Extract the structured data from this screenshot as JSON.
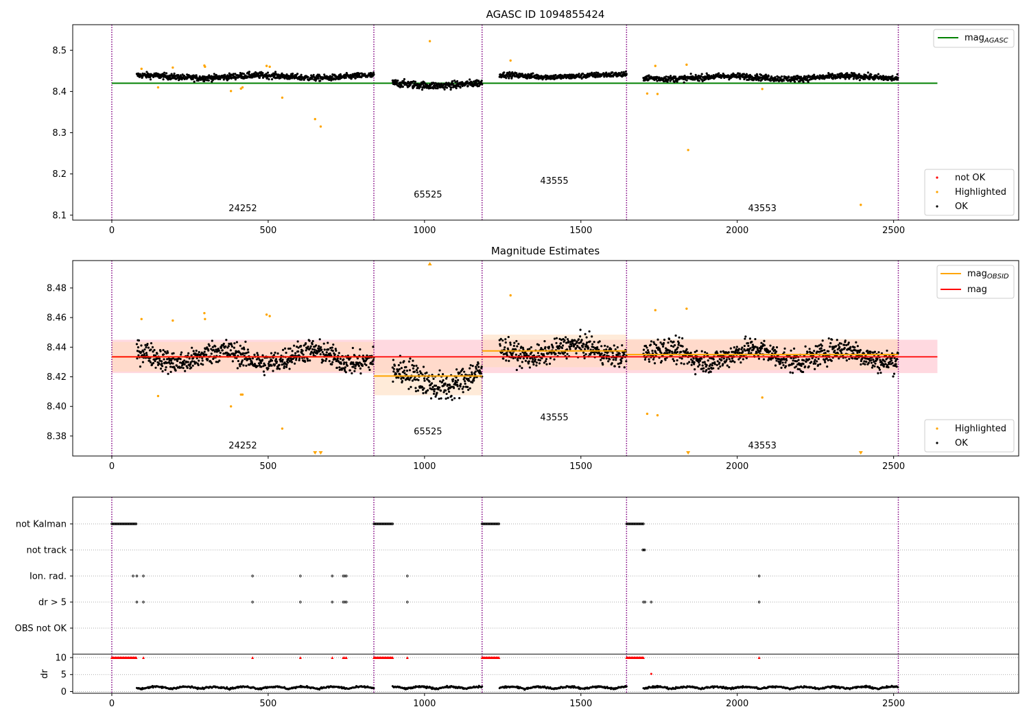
{
  "colors": {
    "ok": "#000000",
    "highlighted": "#ffa500",
    "not_ok": "#ff0000",
    "mag_agasc": "#008000",
    "mag_obsid": "#ffa500",
    "mag": "#ff0000",
    "obsid_boundary": "#800080",
    "band_mag": "#ffc0cb",
    "band_obsid": "#ffdab9"
  },
  "chart_data": [
    {
      "type": "scatter",
      "title": "AGASC ID 1094855424",
      "xlim": [
        -125,
        2900
      ],
      "ylim": [
        8.088,
        8.562
      ],
      "x_ticks": [
        0,
        500,
        1000,
        1500,
        2000,
        2500
      ],
      "y_ticks": [
        8.1,
        8.2,
        8.3,
        8.4,
        8.5
      ],
      "y_tick_labels": [
        "8.1",
        "8.2",
        "8.3",
        "8.4",
        "8.5"
      ],
      "grid": false,
      "lines": [
        {
          "name": "mag_AGASC",
          "value": 8.42,
          "x_range": [
            0,
            2640
          ],
          "color": "#008000"
        }
      ],
      "legend_top": {
        "position": "top-right",
        "entries": [
          {
            "label": "mag",
            "subscript": "AGASC",
            "color": "#008000",
            "kind": "line"
          }
        ]
      },
      "legend_bottom": {
        "position": "bottom-right",
        "entries": [
          {
            "label": "not OK",
            "color": "#ff0000",
            "kind": "point"
          },
          {
            "label": "Highlighted",
            "color": "#ffa500",
            "kind": "point"
          },
          {
            "label": "OK",
            "color": "#000000",
            "kind": "point"
          }
        ]
      },
      "obsid_boundaries": [
        0,
        838,
        1184,
        1646,
        2515
      ],
      "obsid_labels": [
        {
          "text": "24252",
          "x": 419,
          "y": 8.11
        },
        {
          "text": "65525",
          "x": 1011,
          "y": 8.143
        },
        {
          "text": "43555",
          "x": 1415,
          "y": 8.176
        },
        {
          "text": "43553",
          "x": 2080,
          "y": 8.11
        }
      ],
      "segments": [
        {
          "x_range": [
            80,
            838
          ],
          "mean": 8.436,
          "spread": 0.008
        },
        {
          "x_range": [
            898,
            1184
          ],
          "mean": 8.418,
          "spread": 0.01
        },
        {
          "x_range": [
            1240,
            1646
          ],
          "mean": 8.438,
          "spread": 0.007
        },
        {
          "x_range": [
            1700,
            2515
          ],
          "mean": 8.434,
          "spread": 0.008
        }
      ],
      "highlighted_points": [
        {
          "x": 95,
          "y": 8.455
        },
        {
          "x": 148,
          "y": 8.41
        },
        {
          "x": 195,
          "y": 8.458
        },
        {
          "x": 296,
          "y": 8.463
        },
        {
          "x": 298,
          "y": 8.46
        },
        {
          "x": 381,
          "y": 8.401
        },
        {
          "x": 413,
          "y": 8.407
        },
        {
          "x": 418,
          "y": 8.41
        },
        {
          "x": 495,
          "y": 8.462
        },
        {
          "x": 505,
          "y": 8.46
        },
        {
          "x": 545,
          "y": 8.385
        },
        {
          "x": 650,
          "y": 8.333
        },
        {
          "x": 668,
          "y": 8.315
        },
        {
          "x": 1017,
          "y": 8.522
        },
        {
          "x": 1275,
          "y": 8.475
        },
        {
          "x": 1712,
          "y": 8.395
        },
        {
          "x": 1738,
          "y": 8.462
        },
        {
          "x": 1745,
          "y": 8.394
        },
        {
          "x": 1838,
          "y": 8.465
        },
        {
          "x": 1843,
          "y": 8.258
        },
        {
          "x": 2080,
          "y": 8.406
        },
        {
          "x": 2395,
          "y": 8.125
        }
      ]
    },
    {
      "type": "scatter",
      "title": "Magnitude Estimates",
      "xlim": [
        -125,
        2900
      ],
      "ylim": [
        8.3665,
        8.4985
      ],
      "x_ticks": [
        0,
        500,
        1000,
        1500,
        2000,
        2500
      ],
      "y_ticks": [
        8.38,
        8.4,
        8.42,
        8.44,
        8.46,
        8.48
      ],
      "y_tick_labels": [
        "8.38",
        "8.40",
        "8.42",
        "8.44",
        "8.46",
        "8.48"
      ],
      "grid": false,
      "mag": {
        "value": 8.4335,
        "band": [
          8.4225,
          8.445
        ],
        "x_range": [
          0,
          2640
        ],
        "color": "#ff0000"
      },
      "mag_obsid": [
        {
          "x_range": [
            0,
            838
          ],
          "value": 8.4335,
          "band": [
            8.4235,
            8.4435
          ]
        },
        {
          "x_range": [
            838,
            1184
          ],
          "value": 8.4205,
          "band": [
            8.4075,
            8.4335
          ]
        },
        {
          "x_range": [
            1184,
            1646
          ],
          "value": 8.4375,
          "band": [
            8.4265,
            8.4485
          ]
        },
        {
          "x_range": [
            1646,
            2515
          ],
          "value": 8.435,
          "band": [
            8.4245,
            8.4455
          ]
        }
      ],
      "legend_top": {
        "position": "top-right",
        "entries": [
          {
            "label": "mag",
            "subscript": "OBSID",
            "color": "#ffa500",
            "kind": "line"
          },
          {
            "label": "mag",
            "subscript": "",
            "color": "#ff0000",
            "kind": "line"
          }
        ]
      },
      "legend_bottom": {
        "position": "bottom-right",
        "entries": [
          {
            "label": "Highlighted",
            "color": "#ffa500",
            "kind": "point"
          },
          {
            "label": "OK",
            "color": "#000000",
            "kind": "point"
          }
        ]
      },
      "obsid_boundaries": [
        0,
        838,
        1184,
        1646,
        2515
      ],
      "obsid_labels": [
        {
          "text": "24252",
          "x": 419,
          "y": 8.3715
        },
        {
          "text": "65525",
          "x": 1011,
          "y": 8.381
        },
        {
          "text": "43555",
          "x": 1415,
          "y": 8.3905
        },
        {
          "text": "43553",
          "x": 2080,
          "y": 8.3715
        }
      ],
      "segments": [
        {
          "x_range": [
            80,
            838
          ],
          "mean": 8.4335,
          "spread": 0.0085
        },
        {
          "x_range": [
            898,
            1184
          ],
          "mean": 8.4185,
          "spread": 0.011
        },
        {
          "x_range": [
            1240,
            1646
          ],
          "mean": 8.4375,
          "spread": 0.008
        },
        {
          "x_range": [
            1700,
            2515
          ],
          "mean": 8.4345,
          "spread": 0.0085
        }
      ],
      "highlighted_points": [
        {
          "x": 95,
          "y": 8.459
        },
        {
          "x": 148,
          "y": 8.407
        },
        {
          "x": 195,
          "y": 8.458
        },
        {
          "x": 296,
          "y": 8.463
        },
        {
          "x": 298,
          "y": 8.459
        },
        {
          "x": 381,
          "y": 8.4
        },
        {
          "x": 413,
          "y": 8.408
        },
        {
          "x": 418,
          "y": 8.408
        },
        {
          "x": 495,
          "y": 8.462
        },
        {
          "x": 505,
          "y": 8.461
        },
        {
          "x": 545,
          "y": 8.385
        },
        {
          "x": 1275,
          "y": 8.475
        },
        {
          "x": 1712,
          "y": 8.395
        },
        {
          "x": 1738,
          "y": 8.465
        },
        {
          "x": 1745,
          "y": 8.394
        },
        {
          "x": 1838,
          "y": 8.466
        },
        {
          "x": 2080,
          "y": 8.406
        }
      ],
      "clipped_markers": [
        {
          "x": 650,
          "edge": "bottom"
        },
        {
          "x": 668,
          "edge": "bottom"
        },
        {
          "x": 1017,
          "edge": "top"
        },
        {
          "x": 1843,
          "edge": "bottom"
        },
        {
          "x": 2395,
          "edge": "bottom"
        }
      ]
    },
    {
      "type": "scatter",
      "title": "",
      "xlim": [
        -125,
        2900
      ],
      "x_ticks": [
        0,
        500,
        1000,
        1500,
        2000,
        2500
      ],
      "flag_rows": [
        "not Kalman",
        "not track",
        "Ion. rad.",
        "dr > 5",
        "OBS not OK"
      ],
      "flags": {
        "not Kalman": [
          [
            0,
            80
          ],
          [
            838,
            898
          ],
          [
            1184,
            1240
          ],
          [
            1646,
            1700
          ]
        ],
        "not track": [
          [
            1698,
            1706
          ]
        ],
        "Ion. rad.": [
          68,
          80,
          101,
          450,
          603,
          705,
          740,
          745,
          750,
          945,
          2070
        ],
        "dr > 5": [
          80,
          101,
          450,
          603,
          705,
          740,
          745,
          750,
          945,
          1700,
          1705,
          1725,
          2070
        ],
        "OBS not OK": []
      },
      "dr_ylim": [
        -0.5,
        11
      ],
      "dr_ticks": [
        0,
        5,
        10
      ],
      "dr_tick_labels": [
        "0",
        "5",
        "10"
      ],
      "dr_ylabel": "dr",
      "dr_capped_value": 10,
      "dr_capped_ranges": [
        [
          0,
          80
        ],
        [
          838,
          898
        ],
        [
          1184,
          1240
        ],
        [
          1646,
          1700
        ]
      ],
      "dr_capped_points": [
        101,
        450,
        603,
        705,
        740,
        745,
        750,
        945,
        2070
      ],
      "dr_outliers": [
        {
          "x": 1725,
          "y": 5.2
        }
      ],
      "dr_segments": [
        [
          80,
          838
        ],
        [
          898,
          1184
        ],
        [
          1240,
          1646
        ],
        [
          1700,
          2515
        ]
      ],
      "obsid_boundaries": [
        0,
        838,
        1184,
        1646,
        2515
      ]
    }
  ]
}
